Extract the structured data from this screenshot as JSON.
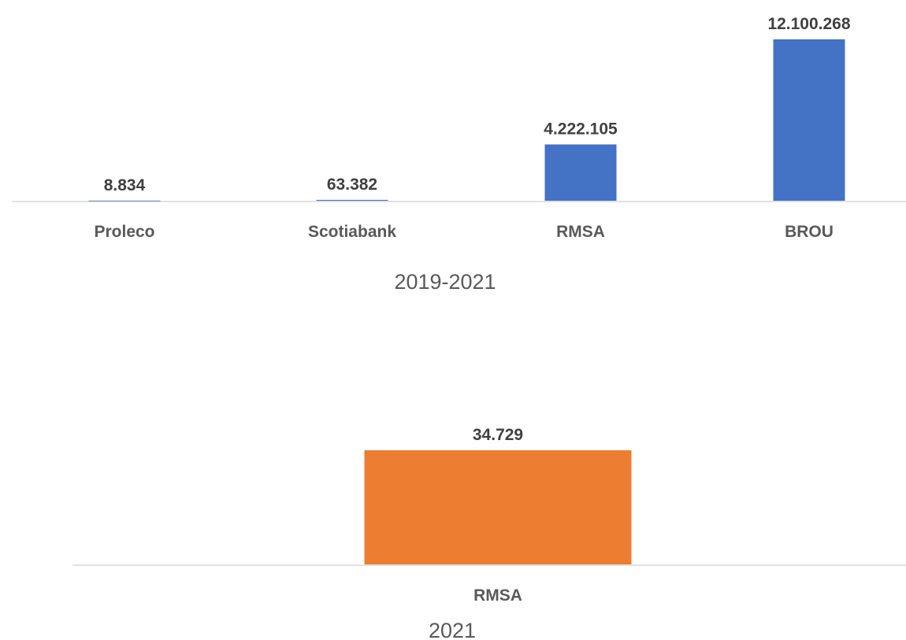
{
  "chart_data": [
    {
      "type": "bar",
      "caption": "2019-2021",
      "categories": [
        "Proleco",
        "Scotiabank",
        "RMSA",
        "BROU"
      ],
      "values": [
        8834,
        63382,
        4222105,
        12100268
      ],
      "value_labels": [
        "8.834",
        "63.382",
        "4.222.105",
        "12.100.268"
      ],
      "color": "#4472C4",
      "ylim": [
        0,
        12100268
      ],
      "grid": false,
      "legend": "none"
    },
    {
      "type": "bar",
      "caption": "2021",
      "categories": [
        "RMSA"
      ],
      "values": [
        34729
      ],
      "value_labels": [
        "34.729"
      ],
      "color": "#ED7D31",
      "ylim": [
        0,
        34729
      ],
      "grid": false,
      "legend": "none"
    }
  ]
}
